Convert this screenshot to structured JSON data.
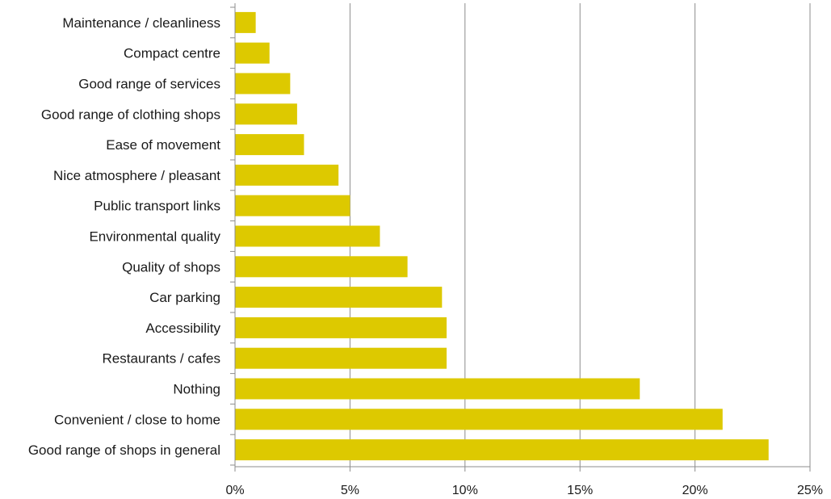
{
  "chart_data": {
    "type": "bar",
    "orientation": "horizontal",
    "title": "",
    "xlabel": "",
    "ylabel": "",
    "categories": [
      "Maintenance / cleanliness",
      "Compact centre",
      "Good range of services",
      "Good range of clothing shops",
      "Ease of movement",
      "Nice atmosphere / pleasant",
      "Public transport links",
      "Environmental quality",
      "Quality of shops",
      "Car parking",
      "Accessibility",
      "Restaurants / cafes",
      "Nothing",
      "Convenient / close to home",
      "Good range of shops in general"
    ],
    "values": [
      0.9,
      1.5,
      2.4,
      2.7,
      3.0,
      4.5,
      5.0,
      6.3,
      7.5,
      9.0,
      9.2,
      9.2,
      17.6,
      21.2,
      23.2
    ],
    "value_unit": "%",
    "xlim": [
      0,
      25
    ],
    "ticks": [
      0,
      5,
      10,
      15,
      20,
      25
    ],
    "tick_labels": [
      "0%",
      "5%",
      "10%",
      "15%",
      "20%",
      "25%"
    ],
    "grid": "vertical",
    "legend": "none",
    "bar_color": "#ddc900"
  }
}
